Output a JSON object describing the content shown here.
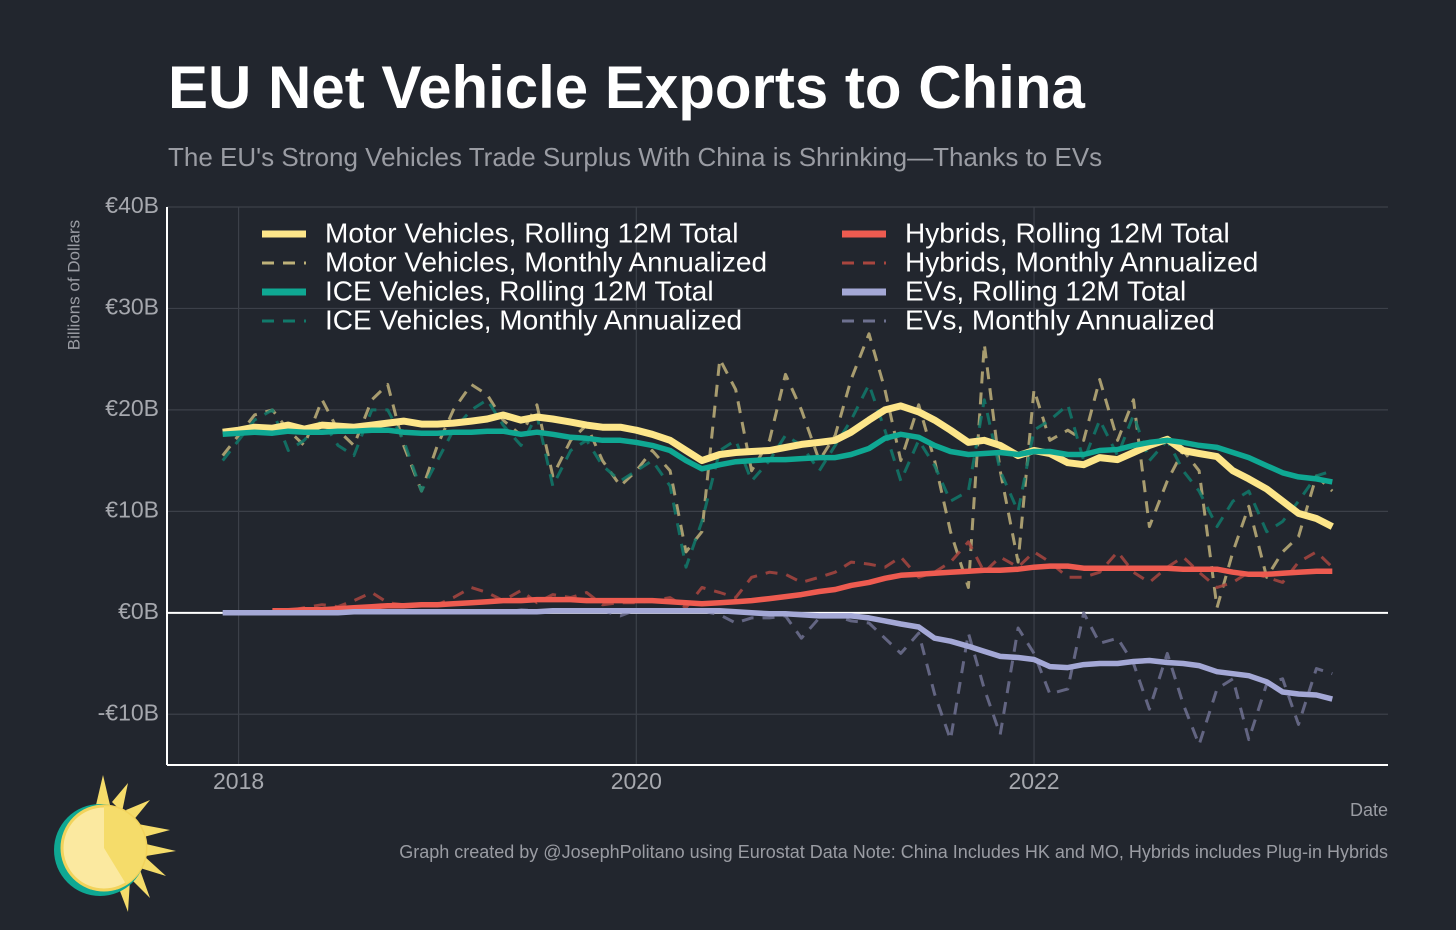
{
  "chart_data": {
    "type": "line",
    "title": "EU Net Vehicle Exports to China",
    "subtitle": "The EU's Strong Vehicles Trade Surplus With China is Shrinking—Thanks to EVs",
    "y_label": "Billions of Dollars",
    "x_label": "Date",
    "caption": "Graph created by @JosephPolitano using Eurostat Data  Note: China Includes HK and MO, Hybrids includes Plug-in Hybrids",
    "legend": "top-left",
    "grid": true,
    "xlim": [
      2017.64,
      2023.78
    ],
    "ylim": [
      -15,
      40
    ],
    "xticks": [
      2018,
      2020,
      2022
    ],
    "yticks": [
      {
        "value": -10,
        "label": "-€10B"
      },
      {
        "value": 0,
        "label": "€0B"
      },
      {
        "value": 10,
        "label": "€10B"
      },
      {
        "value": 20,
        "label": "€20B"
      },
      {
        "value": 30,
        "label": "€30B"
      },
      {
        "value": 40,
        "label": "€40B"
      }
    ],
    "x": [
      2017.92,
      2018.0,
      2018.08,
      2018.17,
      2018.25,
      2018.33,
      2018.42,
      2018.5,
      2018.58,
      2018.67,
      2018.75,
      2018.83,
      2018.92,
      2019.0,
      2019.08,
      2019.17,
      2019.25,
      2019.33,
      2019.42,
      2019.5,
      2019.58,
      2019.67,
      2019.75,
      2019.83,
      2019.92,
      2020.0,
      2020.08,
      2020.17,
      2020.25,
      2020.33,
      2020.42,
      2020.5,
      2020.58,
      2020.67,
      2020.75,
      2020.83,
      2020.92,
      2021.0,
      2021.08,
      2021.17,
      2021.25,
      2021.33,
      2021.42,
      2021.5,
      2021.58,
      2021.67,
      2021.75,
      2021.83,
      2021.92,
      2022.0,
      2022.08,
      2022.17,
      2022.25,
      2022.33,
      2022.42,
      2022.5,
      2022.58,
      2022.67,
      2022.75,
      2022.83,
      2022.92,
      2023.0,
      2023.08,
      2023.17,
      2023.25,
      2023.33,
      2023.42,
      2023.5
    ],
    "series": [
      {
        "name": "Motor Vehicles, Rolling 12M Total",
        "color": "#fde68a",
        "linestyle": "solid",
        "values": [
          17.8,
          18.0,
          18.3,
          18.2,
          18.5,
          18.1,
          18.5,
          18.4,
          18.3,
          18.5,
          18.7,
          18.9,
          18.6,
          18.6,
          18.7,
          18.9,
          19.1,
          19.5,
          19.0,
          19.3,
          19.1,
          18.8,
          18.5,
          18.3,
          18.3,
          18.0,
          17.6,
          17.0,
          16.0,
          15.0,
          15.6,
          15.8,
          15.9,
          16.0,
          16.3,
          16.6,
          16.8,
          17.0,
          17.8,
          19.0,
          20.0,
          20.4,
          19.8,
          19.0,
          18.0,
          16.8,
          17.0,
          16.5,
          15.5,
          16.0,
          15.7,
          14.8,
          14.6,
          15.3,
          15.1,
          15.8,
          16.5,
          17.1,
          16.0,
          15.7,
          15.4,
          14.0,
          13.2,
          12.2,
          11.0,
          9.8,
          9.3,
          8.5
        ]
      },
      {
        "name": "Motor Vehicles, Monthly Annualized",
        "color": "#bfb27a",
        "linestyle": "dashed",
        "values": [
          15.5,
          17.5,
          19.5,
          20.0,
          18.0,
          16.5,
          21.0,
          18.0,
          16.5,
          21.0,
          22.5,
          16.5,
          12.0,
          16.5,
          20.0,
          22.5,
          21.5,
          19.0,
          17.5,
          20.5,
          13.5,
          17.0,
          18.5,
          15.0,
          12.5,
          14.0,
          16.0,
          14.0,
          6.0,
          8.0,
          25.0,
          22.0,
          14.0,
          17.0,
          23.5,
          20.0,
          15.0,
          17.5,
          23.0,
          27.5,
          22.0,
          15.0,
          20.5,
          15.0,
          8.0,
          2.5,
          26.5,
          14.0,
          5.0,
          22.0,
          17.0,
          18.0,
          17.0,
          23.0,
          17.0,
          21.0,
          8.5,
          13.0,
          16.0,
          14.0,
          0.5,
          6.0,
          10.5,
          3.5,
          6.0,
          7.5,
          13.5,
          12.0
        ]
      },
      {
        "name": "ICE Vehicles, Rolling 12M Total",
        "color": "#0fa893",
        "linestyle": "solid",
        "values": [
          17.6,
          17.7,
          17.8,
          17.7,
          17.9,
          17.8,
          17.8,
          17.9,
          17.9,
          18.0,
          18.0,
          17.8,
          17.7,
          17.7,
          17.8,
          17.8,
          17.9,
          17.9,
          17.6,
          17.8,
          17.6,
          17.3,
          17.2,
          17.0,
          17.0,
          16.8,
          16.5,
          16.0,
          15.0,
          14.2,
          14.6,
          14.9,
          15.0,
          15.1,
          15.1,
          15.2,
          15.3,
          15.3,
          15.6,
          16.2,
          17.2,
          17.6,
          17.3,
          16.5,
          15.9,
          15.6,
          15.7,
          15.8,
          15.6,
          15.9,
          15.9,
          15.6,
          15.6,
          16.0,
          16.1,
          16.5,
          16.8,
          17.0,
          16.8,
          16.5,
          16.3,
          15.8,
          15.3,
          14.5,
          13.8,
          13.4,
          13.2,
          12.9
        ]
      },
      {
        "name": "ICE Vehicles, Monthly Annualized",
        "color": "#117a6b",
        "linestyle": "dashed",
        "values": [
          15.0,
          17.0,
          19.0,
          20.0,
          16.0,
          17.0,
          19.0,
          16.5,
          15.5,
          20.0,
          20.0,
          17.0,
          12.0,
          15.0,
          18.0,
          20.0,
          21.0,
          18.5,
          16.5,
          19.5,
          12.5,
          16.0,
          17.0,
          14.5,
          13.0,
          14.0,
          15.0,
          12.5,
          4.5,
          9.0,
          16.0,
          17.0,
          13.0,
          15.0,
          17.5,
          16.5,
          14.0,
          16.5,
          19.0,
          22.5,
          18.0,
          13.0,
          17.0,
          14.5,
          11.0,
          12.0,
          21.0,
          14.0,
          10.0,
          18.0,
          19.0,
          20.5,
          15.0,
          19.0,
          15.5,
          19.5,
          15.0,
          17.0,
          14.0,
          12.0,
          8.5,
          11.0,
          12.0,
          8.0,
          9.0,
          11.0,
          13.5,
          14.0
        ]
      },
      {
        "name": "Hybrids, Rolling 12M Total",
        "color": "#ee5b50",
        "linestyle": "solid",
        "values": [
          null,
          null,
          null,
          0.2,
          0.2,
          0.3,
          0.3,
          0.4,
          0.5,
          0.6,
          0.7,
          0.7,
          0.8,
          0.8,
          0.9,
          1.0,
          1.1,
          1.2,
          1.2,
          1.3,
          1.3,
          1.3,
          1.2,
          1.2,
          1.2,
          1.2,
          1.2,
          1.1,
          1.0,
          0.9,
          1.0,
          1.1,
          1.2,
          1.4,
          1.6,
          1.8,
          2.1,
          2.3,
          2.7,
          3.0,
          3.4,
          3.7,
          3.8,
          3.9,
          4.0,
          4.1,
          4.2,
          4.2,
          4.3,
          4.5,
          4.6,
          4.6,
          4.4,
          4.4,
          4.4,
          4.4,
          4.4,
          4.4,
          4.3,
          4.3,
          4.3,
          4.0,
          3.8,
          3.8,
          3.9,
          4.0,
          4.1,
          4.1
        ]
      },
      {
        "name": "Hybrids, Monthly Annualized",
        "color": "#a9463f",
        "linestyle": "dashed",
        "values": [
          null,
          null,
          null,
          0.3,
          0.2,
          0.5,
          0.8,
          0.6,
          1.2,
          2.0,
          1.0,
          0.8,
          0.9,
          0.8,
          1.5,
          2.5,
          2.0,
          1.2,
          2.2,
          1.0,
          1.8,
          1.5,
          2.0,
          0.8,
          1.0,
          1.0,
          1.2,
          1.5,
          0.5,
          2.5,
          2.0,
          1.5,
          3.5,
          4.0,
          3.8,
          3.0,
          3.5,
          4.0,
          5.0,
          4.8,
          4.5,
          5.5,
          3.5,
          4.0,
          5.0,
          7.0,
          4.0,
          5.5,
          4.5,
          6.0,
          5.0,
          3.5,
          3.5,
          4.0,
          6.0,
          4.0,
          3.0,
          4.5,
          5.5,
          4.0,
          2.5,
          3.0,
          4.0,
          3.5,
          3.0,
          5.0,
          6.0,
          4.5
        ]
      },
      {
        "name": "EVs, Rolling 12M Total",
        "color": "#a4a8d6",
        "linestyle": "solid",
        "values": [
          0.0,
          0.0,
          0.0,
          0.0,
          0.0,
          0.0,
          0.0,
          0.0,
          0.1,
          0.1,
          0.1,
          0.1,
          0.1,
          0.1,
          0.1,
          0.1,
          0.1,
          0.1,
          0.1,
          0.1,
          0.2,
          0.2,
          0.2,
          0.2,
          0.2,
          0.2,
          0.2,
          0.2,
          0.2,
          0.2,
          0.2,
          0.1,
          0.0,
          -0.1,
          -0.1,
          -0.2,
          -0.3,
          -0.3,
          -0.3,
          -0.5,
          -0.8,
          -1.1,
          -1.4,
          -2.5,
          -2.8,
          -3.3,
          -3.8,
          -4.3,
          -4.4,
          -4.6,
          -5.3,
          -5.4,
          -5.1,
          -5.0,
          -5.0,
          -4.8,
          -4.7,
          -4.9,
          -5.0,
          -5.2,
          -5.8,
          -6.0,
          -6.2,
          -6.8,
          -7.8,
          -8.0,
          -8.1,
          -8.5
        ]
      },
      {
        "name": "EVs, Monthly Annualized",
        "color": "#6e7190",
        "linestyle": "dashed",
        "values": [
          0.0,
          0.0,
          0.0,
          0.0,
          0.1,
          0.0,
          0.1,
          0.1,
          0.0,
          0.2,
          0.1,
          0.1,
          0.1,
          0.1,
          0.2,
          0.1,
          0.2,
          0.0,
          0.3,
          0.2,
          0.1,
          0.2,
          0.3,
          0.2,
          -0.3,
          0.3,
          0.2,
          0.1,
          0.3,
          0.2,
          -0.2,
          -1.0,
          -0.5,
          -0.5,
          -0.3,
          -2.5,
          -0.5,
          -0.3,
          -0.8,
          -1.0,
          -2.5,
          -4.0,
          -2.0,
          -8.0,
          -12.5,
          -2.0,
          -7.5,
          -12.0,
          -1.5,
          -4.0,
          -8.0,
          -7.5,
          0.0,
          -3.0,
          -2.5,
          -5.0,
          -9.5,
          -4.0,
          -9.0,
          -13.0,
          -7.5,
          -6.5,
          -12.5,
          -7.0,
          -6.5,
          -11.0,
          -5.5,
          -6.0
        ]
      }
    ]
  }
}
